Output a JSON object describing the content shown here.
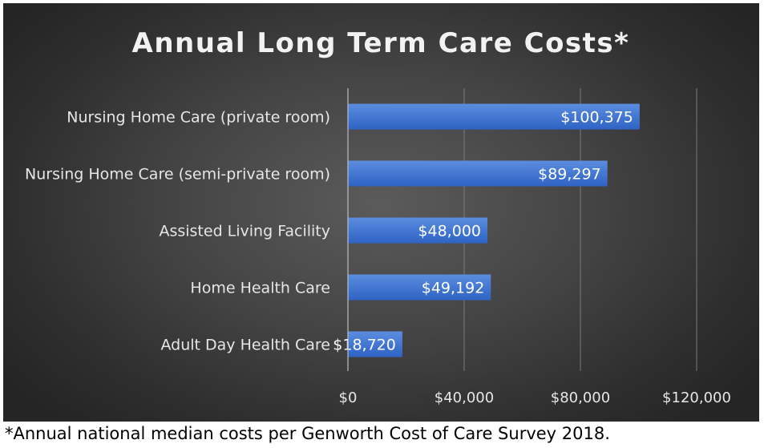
{
  "chart_data": {
    "type": "bar",
    "orientation": "horizontal",
    "title": "Annual Long Term Care Costs*",
    "categories": [
      "Nursing Home Care (private room)",
      "Nursing Home Care (semi-private room)",
      "Assisted Living Facility",
      "Home Health Care",
      "Adult Day Health Care"
    ],
    "values": [
      100375,
      89297,
      48000,
      49192,
      18720
    ],
    "data_labels": [
      "$100,375",
      "$89,297",
      "$48,000",
      "$49,192",
      "$18,720"
    ],
    "xlim": [
      0,
      120000
    ],
    "x_ticks": [
      0,
      40000,
      80000,
      120000
    ],
    "x_tick_labels": [
      "$0",
      "$40,000",
      "$80,000",
      "$120,000"
    ],
    "grid": true,
    "legend": "none",
    "colors": {
      "bar_top": "#5b8de0",
      "bar_bottom": "#2f63c4",
      "background": "#404040"
    }
  },
  "footnote": "*Annual national median costs per Genworth Cost of Care Survey 2018."
}
